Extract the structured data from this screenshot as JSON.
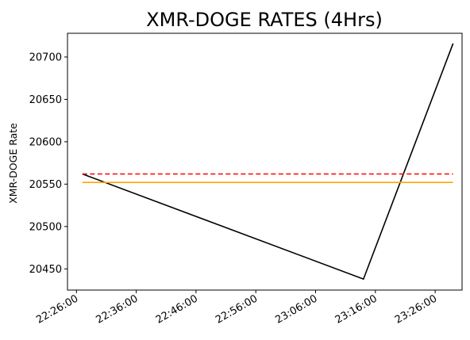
{
  "chart_data": {
    "type": "line",
    "title": "XMR-DOGE RATES (4Hrs)",
    "xlabel": "",
    "ylabel": "XMR-DOGE Rate",
    "x_tick_labels": [
      "22:26:00",
      "22:36:00",
      "22:46:00",
      "22:56:00",
      "23:06:00",
      "23:16:00",
      "23:26:00"
    ],
    "y_ticks": [
      20450,
      20500,
      20550,
      20600,
      20650,
      20700
    ],
    "xlim": [
      "22:24:30",
      "23:30:30"
    ],
    "ylim": [
      20425,
      20728
    ],
    "grid": false,
    "series": [
      {
        "color": "#000000",
        "style": "solid",
        "points": [
          {
            "x": "22:27:00",
            "y": 20562
          },
          {
            "x": "23:14:00",
            "y": 20438
          },
          {
            "x": "23:29:00",
            "y": 20716
          }
        ]
      },
      {
        "color": "#ff0000",
        "style": "dashed",
        "points": [
          {
            "x": "22:27:00",
            "y": 20562
          },
          {
            "x": "23:29:00",
            "y": 20562
          }
        ]
      },
      {
        "color": "#ffa500",
        "style": "solid",
        "points": [
          {
            "x": "22:27:00",
            "y": 20552
          },
          {
            "x": "23:29:00",
            "y": 20552
          }
        ]
      }
    ]
  }
}
